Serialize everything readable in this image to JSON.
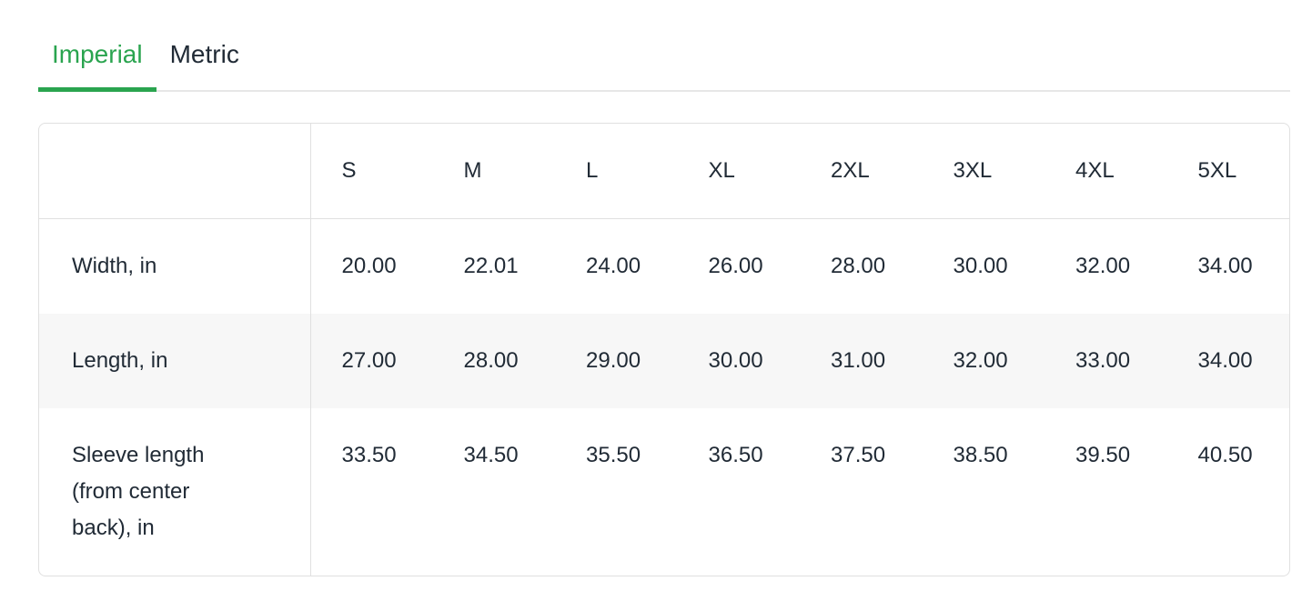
{
  "tabs": {
    "items": [
      {
        "label": "Imperial",
        "active": true
      },
      {
        "label": "Metric",
        "active": false
      }
    ]
  },
  "table": {
    "columns": [
      "",
      "S",
      "M",
      "L",
      "XL",
      "2XL",
      "3XL",
      "4XL",
      "5XL"
    ],
    "rows": [
      {
        "label": "Width, in",
        "values": [
          "20.00",
          "22.01",
          "24.00",
          "26.00",
          "28.00",
          "30.00",
          "32.00",
          "34.00"
        ]
      },
      {
        "label": "Length, in",
        "values": [
          "27.00",
          "28.00",
          "29.00",
          "30.00",
          "31.00",
          "32.00",
          "33.00",
          "34.00"
        ]
      },
      {
        "label": "Sleeve length (from center back), in",
        "values": [
          "33.50",
          "34.50",
          "35.50",
          "36.50",
          "37.50",
          "38.50",
          "39.50",
          "40.50"
        ]
      }
    ]
  },
  "colors": {
    "accent": "#2aa44f",
    "text": "#212b36",
    "border": "#e0e0e0",
    "stripe": "#f7f7f7",
    "tab_line": "#e7e7e7"
  }
}
